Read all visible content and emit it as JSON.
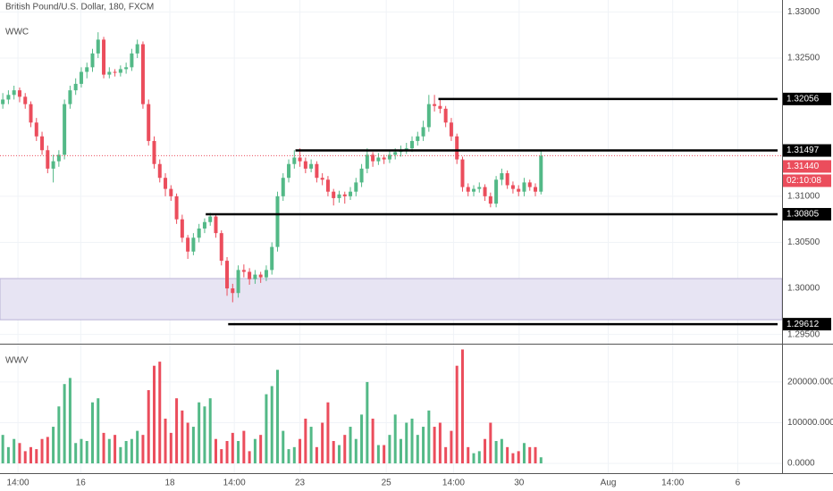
{
  "chart_data": {
    "type": "candlestick",
    "title": "British Pound/U.S. Dollar, 180, FXCM",
    "indicator_label": "WWC",
    "volume_label": "WWV",
    "up_color": "#53b987",
    "down_color": "#eb4d5c",
    "xlim": [
      -0.5,
      139
    ],
    "xticks": [
      {
        "value": 2.7,
        "label": "14:00"
      },
      {
        "value": 13.9,
        "label": "16"
      },
      {
        "value": 29.8,
        "label": "18"
      },
      {
        "value": 41.3,
        "label": "14:00"
      },
      {
        "value": 53,
        "label": "23"
      },
      {
        "value": 68.4,
        "label": "25"
      },
      {
        "value": 80.4,
        "label": "14:00"
      },
      {
        "value": 92.1,
        "label": "30"
      },
      {
        "value": 108,
        "label": "Aug"
      },
      {
        "value": 119.5,
        "label": "14:00"
      },
      {
        "value": 131.1,
        "label": "6"
      }
    ],
    "ylim": [
      1.294,
      1.3313
    ],
    "yticks": [
      {
        "value": 1.33,
        "label": "1.33000"
      },
      {
        "value": 1.325,
        "label": "1.32500"
      },
      {
        "value": 1.31,
        "label": "1.31000"
      },
      {
        "value": 1.305,
        "label": "1.30500"
      },
      {
        "value": 1.3,
        "label": "1.30000"
      },
      {
        "value": 1.295,
        "label": "1.29500"
      }
    ],
    "zone": [
      1.2966,
      1.30107
    ],
    "levels": [
      {
        "value": 1.32056,
        "from": 77.7
      },
      {
        "value": 1.31497,
        "from": 52.2
      },
      {
        "value": 1.30805,
        "from": 36.2
      },
      {
        "value": 1.29612,
        "from": 40.2
      }
    ],
    "current_price": {
      "value": 1.3144,
      "label": "1.31440"
    },
    "countdown": "02:10:08",
    "ohlc": [
      [
        1.32,
        1.3212,
        1.3195,
        1.3205
      ],
      [
        1.3205,
        1.3215,
        1.32,
        1.321
      ],
      [
        1.321,
        1.322,
        1.3205,
        1.3215
      ],
      [
        1.3215,
        1.3218,
        1.3202,
        1.3208
      ],
      [
        1.3208,
        1.3212,
        1.3195,
        1.32
      ],
      [
        1.32,
        1.3203,
        1.3175,
        1.318
      ],
      [
        1.318,
        1.3185,
        1.316,
        1.3165
      ],
      [
        1.3165,
        1.317,
        1.3145,
        1.315
      ],
      [
        1.315,
        1.3155,
        1.3125,
        1.313
      ],
      [
        1.313,
        1.3145,
        1.3115,
        1.3138
      ],
      [
        1.3138,
        1.315,
        1.3132,
        1.3145
      ],
      [
        1.3145,
        1.3205,
        1.314,
        1.32
      ],
      [
        1.32,
        1.322,
        1.3195,
        1.3215
      ],
      [
        1.3215,
        1.3228,
        1.321,
        1.3222
      ],
      [
        1.3222,
        1.324,
        1.3218,
        1.3235
      ],
      [
        1.3235,
        1.3245,
        1.3228,
        1.324
      ],
      [
        1.324,
        1.326,
        1.3235,
        1.3255
      ],
      [
        1.3255,
        1.3278,
        1.325,
        1.327
      ],
      [
        1.327,
        1.3273,
        1.3228,
        1.3232
      ],
      [
        1.3232,
        1.324,
        1.3228,
        1.3235
      ],
      [
        1.3235,
        1.3238,
        1.323,
        1.3234
      ],
      [
        1.3234,
        1.3242,
        1.323,
        1.3238
      ],
      [
        1.3238,
        1.3245,
        1.3233,
        1.324
      ],
      [
        1.324,
        1.326,
        1.3236,
        1.3255
      ],
      [
        1.3255,
        1.327,
        1.325,
        1.3265
      ],
      [
        1.3265,
        1.3268,
        1.3195,
        1.32
      ],
      [
        1.32,
        1.3205,
        1.3155,
        1.316
      ],
      [
        1.316,
        1.3165,
        1.313,
        1.3135
      ],
      [
        1.3135,
        1.314,
        1.3115,
        1.312
      ],
      [
        1.312,
        1.3125,
        1.31,
        1.3108
      ],
      [
        1.3108,
        1.3112,
        1.3095,
        1.31
      ],
      [
        1.31,
        1.3103,
        1.307,
        1.3075
      ],
      [
        1.3075,
        1.308,
        1.305,
        1.3055
      ],
      [
        1.3055,
        1.3058,
        1.3032,
        1.304
      ],
      [
        1.304,
        1.306,
        1.3036,
        1.3055
      ],
      [
        1.3055,
        1.307,
        1.305,
        1.3065
      ],
      [
        1.3065,
        1.3076,
        1.306,
        1.3072
      ],
      [
        1.3072,
        1.3082,
        1.3068,
        1.3078
      ],
      [
        1.3078,
        1.308,
        1.3055,
        1.306
      ],
      [
        1.306,
        1.3063,
        1.3025,
        1.303
      ],
      [
        1.303,
        1.3034,
        1.2992,
        1.3
      ],
      [
        1.3,
        1.3005,
        1.2985,
        1.2995
      ],
      [
        1.2995,
        1.3025,
        1.299,
        1.302
      ],
      [
        1.302,
        1.3026,
        1.3012,
        1.3018
      ],
      [
        1.3018,
        1.3022,
        1.3004,
        1.301
      ],
      [
        1.301,
        1.302,
        1.3005,
        1.3015
      ],
      [
        1.3015,
        1.3018,
        1.3006,
        1.3012
      ],
      [
        1.3012,
        1.3025,
        1.3008,
        1.302
      ],
      [
        1.302,
        1.305,
        1.3015,
        1.3045
      ],
      [
        1.3045,
        1.3105,
        1.304,
        1.31
      ],
      [
        1.31,
        1.3125,
        1.3095,
        1.312
      ],
      [
        1.312,
        1.314,
        1.3115,
        1.3135
      ],
      [
        1.3135,
        1.315,
        1.313,
        1.3142
      ],
      [
        1.3142,
        1.3152,
        1.3132,
        1.3138
      ],
      [
        1.3138,
        1.3142,
        1.3125,
        1.313
      ],
      [
        1.313,
        1.314,
        1.3126,
        1.3135
      ],
      [
        1.3135,
        1.3138,
        1.3115,
        1.312
      ],
      [
        1.312,
        1.3125,
        1.3112,
        1.3118
      ],
      [
        1.3118,
        1.3122,
        1.31,
        1.3105
      ],
      [
        1.3105,
        1.3108,
        1.309,
        1.3098
      ],
      [
        1.3098,
        1.3106,
        1.3093,
        1.3102
      ],
      [
        1.3102,
        1.3105,
        1.3092,
        1.31
      ],
      [
        1.31,
        1.311,
        1.3096,
        1.3105
      ],
      [
        1.3105,
        1.312,
        1.31,
        1.3115
      ],
      [
        1.3115,
        1.3135,
        1.311,
        1.313
      ],
      [
        1.313,
        1.3152,
        1.3125,
        1.3145
      ],
      [
        1.3145,
        1.3148,
        1.3132,
        1.3138
      ],
      [
        1.3138,
        1.3147,
        1.3134,
        1.3142
      ],
      [
        1.3142,
        1.3145,
        1.3135,
        1.314
      ],
      [
        1.314,
        1.315,
        1.3136,
        1.3145
      ],
      [
        1.3145,
        1.3152,
        1.314,
        1.3148
      ],
      [
        1.3148,
        1.3155,
        1.3143,
        1.315
      ],
      [
        1.315,
        1.3158,
        1.3146,
        1.3152
      ],
      [
        1.3152,
        1.3165,
        1.3148,
        1.316
      ],
      [
        1.316,
        1.317,
        1.3155,
        1.3165
      ],
      [
        1.3165,
        1.3182,
        1.316,
        1.3175
      ],
      [
        1.3175,
        1.321,
        1.317,
        1.32
      ],
      [
        1.32,
        1.321,
        1.3192,
        1.3198
      ],
      [
        1.3198,
        1.3205,
        1.319,
        1.3195
      ],
      [
        1.3195,
        1.3198,
        1.3175,
        1.318
      ],
      [
        1.318,
        1.3185,
        1.316,
        1.3165
      ],
      [
        1.3165,
        1.3168,
        1.3135,
        1.314
      ],
      [
        1.314,
        1.3143,
        1.3105,
        1.311
      ],
      [
        1.311,
        1.3114,
        1.31,
        1.3105
      ],
      [
        1.3105,
        1.3112,
        1.31,
        1.3108
      ],
      [
        1.3108,
        1.3115,
        1.3104,
        1.311
      ],
      [
        1.311,
        1.3113,
        1.3095,
        1.31
      ],
      [
        1.31,
        1.3104,
        1.3088,
        1.3092
      ],
      [
        1.3092,
        1.3122,
        1.3088,
        1.3118
      ],
      [
        1.3118,
        1.313,
        1.3112,
        1.3125
      ],
      [
        1.3125,
        1.3128,
        1.3108,
        1.3112
      ],
      [
        1.3112,
        1.3116,
        1.3103,
        1.3108
      ],
      [
        1.3108,
        1.3112,
        1.31,
        1.3105
      ],
      [
        1.3105,
        1.312,
        1.31,
        1.3115
      ],
      [
        1.3115,
        1.3118,
        1.3106,
        1.311
      ],
      [
        1.311,
        1.3114,
        1.31,
        1.3105
      ],
      [
        1.3105,
        1.315,
        1.3102,
        1.3144
      ]
    ],
    "volume": [
      70000,
      40000,
      60000,
      50000,
      30000,
      40000,
      35000,
      60000,
      65000,
      90000,
      140000,
      195000,
      210000,
      50000,
      60000,
      55000,
      150000,
      160000,
      75000,
      60000,
      70000,
      40000,
      55000,
      60000,
      80000,
      70000,
      180000,
      240000,
      250000,
      110000,
      75000,
      160000,
      130000,
      100000,
      90000,
      150000,
      140000,
      160000,
      60000,
      35000,
      55000,
      75000,
      55000,
      80000,
      30000,
      60000,
      70000,
      170000,
      190000,
      230000,
      80000,
      35000,
      40000,
      60000,
      110000,
      90000,
      40000,
      100000,
      150000,
      55000,
      45000,
      70000,
      90000,
      60000,
      120000,
      200000,
      110000,
      45000,
      45000,
      70000,
      120000,
      60000,
      100000,
      110000,
      70000,
      90000,
      130000,
      90000,
      100000,
      40000,
      80000,
      240000,
      280000,
      40000,
      25000,
      30000,
      60000,
      100000,
      55000,
      60000,
      40000,
      25000,
      30000,
      50000,
      40000,
      40000,
      15000
    ],
    "vlim": [
      -24000,
      292000
    ],
    "vticks": [
      {
        "value": 200000,
        "label": "200000.0000"
      },
      {
        "value": 100000,
        "label": "100000.0000"
      },
      {
        "value": 0,
        "label": "0.0000"
      }
    ]
  }
}
